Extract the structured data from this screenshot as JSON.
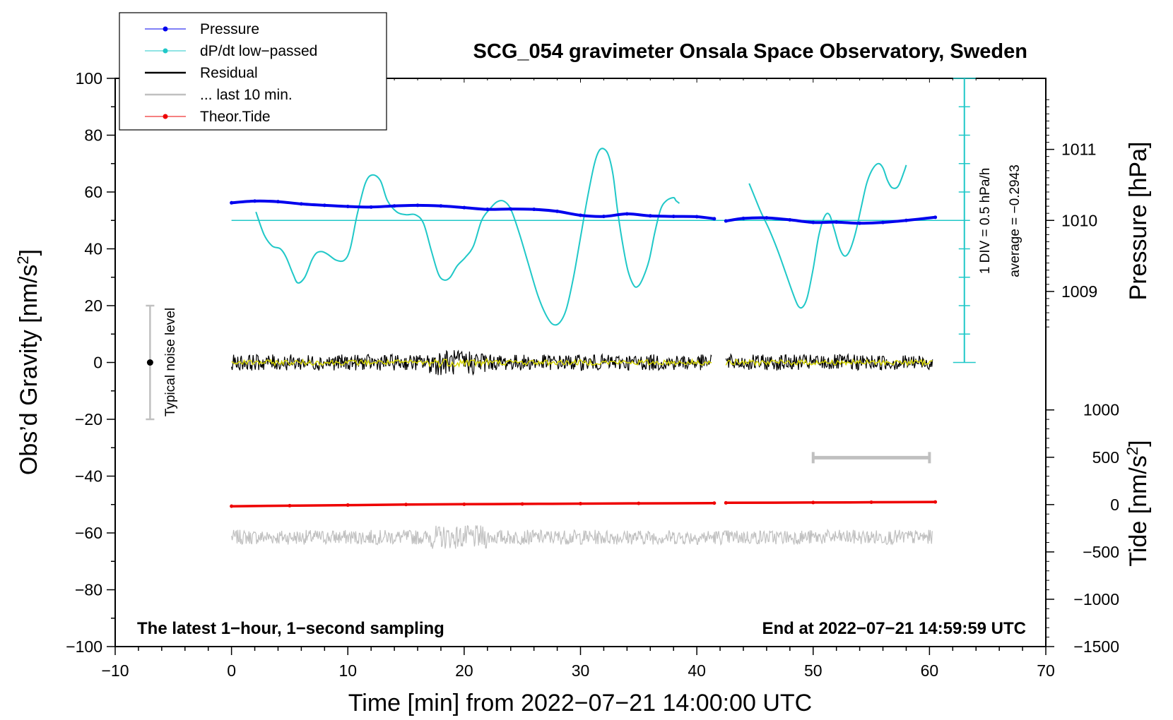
{
  "chart_data": {
    "type": "line",
    "title": "SCG_054 gravimeter Onsala Space Observatory, Sweden",
    "xlabel": "Time [min] from 2022−07−21 14:00:00 UTC",
    "ylabel_left_prefix": "Obs’d Gravity [nm/s",
    "ylabel_left_sup": "2",
    "ylabel_left_suffix": "]",
    "ylabel_right_pressure": "Pressure [hPa]",
    "ylabel_right_tide_prefix": "Tide [nm/s",
    "ylabel_right_tide_sup": "2",
    "ylabel_right_tide_suffix": "]",
    "xlim": [
      -10,
      70
    ],
    "ylim": [
      -100,
      100
    ],
    "x_ticks": [
      {
        "value": -10,
        "label": "−10"
      },
      {
        "value": 0,
        "label": "0"
      },
      {
        "value": 10,
        "label": "10"
      },
      {
        "value": 20,
        "label": "20"
      },
      {
        "value": 30,
        "label": "30"
      },
      {
        "value": 40,
        "label": "40"
      },
      {
        "value": 50,
        "label": "50"
      },
      {
        "value": 60,
        "label": "60"
      },
      {
        "value": 70,
        "label": "70"
      }
    ],
    "y_ticks": [
      {
        "value": 100,
        "label": "100"
      },
      {
        "value": 80,
        "label": "80"
      },
      {
        "value": 60,
        "label": "60"
      },
      {
        "value": 40,
        "label": "40"
      },
      {
        "value": 20,
        "label": "20"
      },
      {
        "value": 0,
        "label": "0"
      },
      {
        "value": -20,
        "label": "−20"
      },
      {
        "value": -40,
        "label": "−40"
      },
      {
        "value": -60,
        "label": "−60"
      },
      {
        "value": -80,
        "label": "−80"
      },
      {
        "value": -100,
        "label": "−100"
      }
    ],
    "pressure_axis": {
      "gravity_equivalent": [
        [
          1009,
          25
        ],
        [
          1010,
          50
        ],
        [
          1011,
          75
        ]
      ],
      "ticks": [
        {
          "value": 1011,
          "label": "1011"
        },
        {
          "value": 1010,
          "label": "1010"
        },
        {
          "value": 1009,
          "label": "1009"
        }
      ]
    },
    "tide_axis": {
      "gravity_equivalent": [
        [
          -1500,
          -100
        ],
        [
          1000,
          -16.7
        ]
      ],
      "ticks": [
        {
          "value": 1000,
          "label": "1000"
        },
        {
          "value": 500,
          "label": "500"
        },
        {
          "value": 0,
          "label": "0"
        },
        {
          "value": -500,
          "label": "−500"
        },
        {
          "value": -1000,
          "label": "−1000"
        },
        {
          "value": -1500,
          "label": "−1500"
        }
      ]
    },
    "ddt_scale": {
      "label": "1 DIV = 0.5 hPa/h",
      "average": "average = −0.2943",
      "x": 63,
      "y_from": 0,
      "y_to": 100,
      "divisions": 10
    },
    "noise_bar": {
      "label": "Typical noise level",
      "x": -7,
      "center": 0,
      "low": -20,
      "high": 20
    },
    "last10_bar": {
      "x_from": 50,
      "x_to": 60,
      "y": -33.5
    },
    "pressure_reference_level": 50,
    "series": [
      {
        "name": "Pressure",
        "color": "#0000ee",
        "style": "points",
        "segments": [
          {
            "x": [
              0,
              2,
              4,
              6,
              8,
              10,
              12,
              14,
              16,
              18,
              20,
              22,
              24,
              26,
              28,
              30,
              32,
              34,
              36,
              38,
              40,
              41.5
            ],
            "y": [
              56.2,
              56.8,
              56.6,
              55.8,
              55.3,
              54.9,
              54.7,
              55.1,
              55.3,
              55.1,
              54.5,
              53.9,
              54.0,
              53.9,
              53.2,
              51.8,
              51.4,
              52.3,
              51.6,
              51.4,
              51.3,
              50.6
            ]
          },
          {
            "x": [
              42.5,
              44,
              46,
              48,
              50,
              52,
              54,
              56,
              58,
              60.5
            ],
            "y": [
              49.8,
              50.7,
              50.9,
              50.2,
              49.3,
              49.4,
              49.0,
              49.3,
              50.0,
              51.1
            ]
          }
        ]
      },
      {
        "name": "dP/dt low−passed",
        "color": "#20c8c8",
        "style": "line",
        "segments": [
          {
            "x": [
              2.1,
              2.8,
              3.5,
              4.2,
              4.7,
              5.3,
              5.7,
              6.3,
              6.9,
              7.3,
              7.8,
              8.3,
              9.0,
              9.7,
              10.2,
              10.8,
              11.5,
              12.1,
              12.8,
              13.4,
              14.2,
              15.0,
              15.8,
              16.5,
              17.2,
              17.8,
              18.3,
              18.8,
              19.4,
              20.1,
              20.8,
              21.5,
              22.2,
              22.8,
              23.4,
              24.0,
              24.7,
              25.5,
              26.3,
              27.0,
              27.6,
              28.2,
              28.8,
              29.4,
              30.0,
              30.6,
              31.2,
              31.6,
              32.0,
              32.4,
              32.8,
              33.2,
              33.7,
              34.1,
              34.6,
              35.0,
              35.4,
              35.9,
              36.4,
              36.9,
              37.4,
              38.0,
              38.2,
              38.5
            ],
            "y": [
              53,
              45,
              41,
              40,
              37,
              31,
              28,
              30,
              36,
              38.5,
              39,
              38,
              36,
              36,
              40,
              52,
              63,
              66,
              64,
              57,
              53,
              52,
              52,
              49,
              39,
              31,
              29,
              30,
              34,
              37,
              41,
              50,
              54,
              56.5,
              56.8,
              54,
              46,
              35,
              24,
              17,
              13.5,
              14,
              19,
              30,
              44,
              58,
              70,
              74.5,
              75.2,
              73,
              66,
              53,
              40,
              32,
              27,
              27,
              30,
              36,
              46,
              54,
              57,
              58,
              57,
              56
            ]
          },
          {
            "x": [
              44.5,
              45.0,
              45.5,
              46.2,
              46.9,
              47.6,
              48.2,
              48.7,
              49.1,
              49.5,
              50.0,
              50.5,
              51.0,
              51.4,
              51.8,
              52.3,
              52.7,
              53.1,
              53.6,
              54.1,
              54.6,
              55.1,
              55.6,
              56.0,
              56.4,
              56.8,
              57.3,
              57.8,
              58.0
            ],
            "y": [
              63,
              58,
              53,
              47,
              40,
              32,
              25,
              20,
              19.5,
              23,
              33,
              45,
              51.5,
              52,
              47,
              40,
              37.5,
              39,
              45,
              54,
              63,
              68,
              70,
              68.5,
              64,
              61.5,
              62,
              67,
              69.5
            ]
          }
        ]
      },
      {
        "name": "Residual",
        "color": "#000000",
        "style": "noise",
        "segments": [
          {
            "x_from": 0,
            "x_to": 41.3
          },
          {
            "x_from": 42.5,
            "x_to": 60.3
          }
        ],
        "baseline": 0,
        "amplitude": 2.8
      },
      {
        "name": "... last 10 min.",
        "color": "#c0c0c0",
        "style": "noise",
        "segments": [
          {
            "x_from": 0,
            "x_to": 60.3
          }
        ],
        "baseline": -61.5,
        "amplitude": 2.6
      },
      {
        "name": "Theor.Tide",
        "color": "#ee0000",
        "style": "points",
        "segments": [
          {
            "x": [
              0,
              5,
              10,
              15,
              20,
              25,
              30,
              35,
              41.5
            ],
            "y": [
              -50.6,
              -50.4,
              -50.2,
              -50.0,
              -49.9,
              -49.8,
              -49.7,
              -49.6,
              -49.5
            ]
          },
          {
            "x": [
              42.5,
              50,
              55,
              60.5
            ],
            "y": [
              -49.4,
              -49.3,
              -49.2,
              -49.1
            ]
          }
        ]
      }
    ],
    "annotations": [
      {
        "text": "The latest 1−hour, 1−second sampling",
        "position": "bottom-left"
      },
      {
        "text": "End at 2022−07−21 14:59:59 UTC",
        "position": "bottom-right"
      }
    ],
    "legend": {
      "position": "top-left",
      "entries": [
        {
          "label": "Pressure",
          "color": "#0000ee",
          "marker": true
        },
        {
          "label": "dP/dt low−passed",
          "color": "#20c8c8",
          "marker": true
        },
        {
          "label": "Residual",
          "color": "#000000",
          "marker": false
        },
        {
          "label": "... last 10 min.",
          "color": "#c0c0c0",
          "marker": false
        },
        {
          "label": "Theor.Tide",
          "color": "#ee0000",
          "marker": true
        }
      ]
    }
  }
}
